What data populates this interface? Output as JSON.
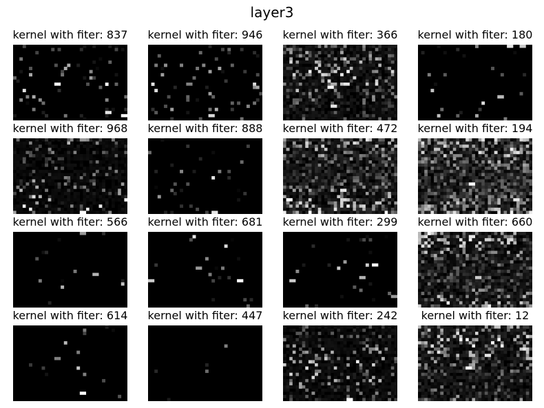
{
  "figure": {
    "title": "layer3"
  },
  "chart_data": {
    "type": "heatmap",
    "colormap": "gray",
    "grid": false,
    "panels": [
      {
        "title": "kernel with fiter: 837",
        "filter": 837,
        "activity": 0.08,
        "seed": 11,
        "highlights": [
          [
            0.38,
            0.5,
            1.0
          ],
          [
            0.82,
            0.9,
            0.9
          ],
          [
            0.98,
            0.92,
            1.0
          ]
        ]
      },
      {
        "title": "kernel with fiter: 946",
        "filter": 946,
        "activity": 0.05,
        "seed": 23,
        "highlights": [
          [
            0.55,
            0.92,
            0.85
          ],
          [
            0.35,
            0.5,
            0.5
          ]
        ]
      },
      {
        "title": "kernel with fiter: 366",
        "filter": 366,
        "activity": 0.3,
        "seed": 37,
        "highlights": [
          [
            0.4,
            0.55,
            1.0
          ],
          [
            0.55,
            0.5,
            0.9
          ],
          [
            0.42,
            0.82,
            0.9
          ]
        ]
      },
      {
        "title": "kernel with fiter: 180",
        "filter": 180,
        "activity": 0.03,
        "seed": 41,
        "highlights": [
          [
            0.78,
            0.02,
            0.9
          ],
          [
            0.9,
            0.02,
            0.8
          ]
        ]
      },
      {
        "title": "kernel with fiter: 968",
        "filter": 968,
        "activity": 0.18,
        "seed": 53,
        "highlights": [
          [
            0.6,
            0.02,
            0.6
          ],
          [
            0.6,
            0.96,
            1.0
          ]
        ]
      },
      {
        "title": "kernel with fiter: 888",
        "filter": 888,
        "activity": 0.04,
        "seed": 61,
        "highlights": [
          [
            0.58,
            0.96,
            0.9
          ]
        ]
      },
      {
        "title": "kernel with fiter: 472",
        "filter": 472,
        "activity": 0.5,
        "seed": 71,
        "highlights": [
          [
            0.05,
            0.8,
            1.0
          ],
          [
            0.5,
            0.7,
            0.9
          ]
        ]
      },
      {
        "title": "kernel with fiter: 194",
        "filter": 194,
        "activity": 0.62,
        "seed": 83,
        "highlights": [
          [
            0.45,
            0.6,
            1.0
          ],
          [
            0.85,
            0.8,
            0.9
          ]
        ]
      },
      {
        "title": "kernel with fiter: 566",
        "filter": 566,
        "activity": 0.02,
        "seed": 97,
        "highlights": [
          [
            0.72,
            0.55,
            0.7
          ],
          [
            0.6,
            0.02,
            0.6
          ]
        ]
      },
      {
        "title": "kernel with fiter: 681",
        "filter": 681,
        "activity": 0.02,
        "seed": 101,
        "highlights": [
          [
            0.78,
            0.65,
            1.0
          ],
          [
            0.42,
            0.48,
            0.6
          ],
          [
            0.0,
            0.66,
            0.8
          ]
        ]
      },
      {
        "title": "kernel with fiter: 299",
        "filter": 299,
        "activity": 0.03,
        "seed": 113,
        "highlights": [
          [
            0.78,
            0.45,
            1.0
          ],
          [
            0.68,
            0.6,
            0.7
          ],
          [
            0.08,
            0.65,
            0.8
          ],
          [
            0.98,
            0.85,
            0.6
          ]
        ]
      },
      {
        "title": "kernel with fiter: 660",
        "filter": 660,
        "activity": 0.42,
        "seed": 127,
        "highlights": [
          [
            0.45,
            0.05,
            0.9
          ],
          [
            0.5,
            0.6,
            0.8
          ]
        ]
      },
      {
        "title": "kernel with fiter: 614",
        "filter": 614,
        "activity": 0.02,
        "seed": 131,
        "highlights": [
          [
            0.6,
            0.9,
            1.0
          ],
          [
            0.38,
            0.45,
            0.5
          ]
        ]
      },
      {
        "title": "kernel with fiter: 447",
        "filter": 447,
        "activity": 0.005,
        "seed": 139,
        "highlights": []
      },
      {
        "title": "kernel with fiter: 242",
        "filter": 242,
        "activity": 0.22,
        "seed": 149,
        "highlights": [
          [
            0.58,
            0.97,
            1.0
          ],
          [
            0.3,
            0.45,
            0.4
          ]
        ]
      },
      {
        "title": "kernel with fiter: 12",
        "filter": 12,
        "activity": 0.4,
        "seed": 151,
        "highlights": [
          [
            0.42,
            0.55,
            1.0
          ],
          [
            0.6,
            0.4,
            0.9
          ]
        ]
      }
    ]
  }
}
